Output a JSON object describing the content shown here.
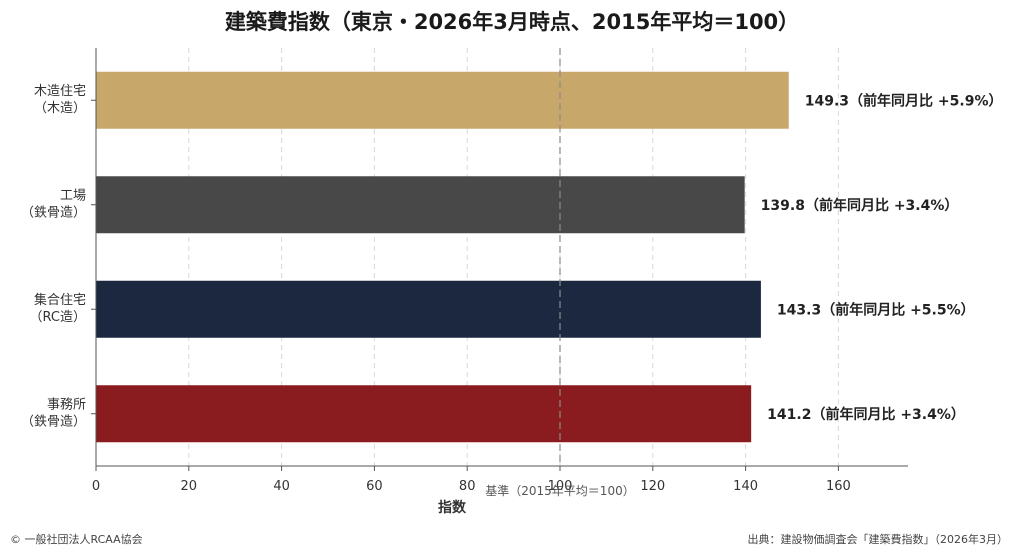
{
  "chart_data": {
    "type": "bar",
    "orientation": "horizontal",
    "title": "建築費指数（東京・2026年3月時点、2015年平均＝100）",
    "xlabel": "指数",
    "ylabel": "",
    "xlim": [
      0,
      175
    ],
    "xticks": [
      0,
      20,
      40,
      60,
      80,
      100,
      120,
      140,
      160
    ],
    "xtick_labels": [
      "0",
      "20",
      "40",
      "60",
      "80",
      "100",
      "120",
      "140",
      "160"
    ],
    "grid": "vertical dashed",
    "categories": [
      [
        "木造住宅",
        "（木造）"
      ],
      [
        "工場",
        "（鉄骨造）"
      ],
      [
        "集合住宅",
        "（RC造）"
      ],
      [
        "事務所",
        "（鉄骨造）"
      ]
    ],
    "values": [
      149.3,
      139.8,
      143.3,
      141.2
    ],
    "value_labels": [
      "149.3（前年同月比 +5.9%）",
      "139.8（前年同月比 +3.4%）",
      "143.3（前年同月比 +5.5%）",
      "141.2（前年同月比 +3.4%）"
    ],
    "colors": [
      "#c8a76a",
      "#484848",
      "#1b2840",
      "#8a1b1e"
    ],
    "reference_line": {
      "value": 100,
      "label": "基準（2015年平均＝100）"
    }
  },
  "footer": {
    "left": "© 一般社団法人RCAA協会",
    "right": "出典：建設物価調査会「建築費指数」（2026年3月）"
  }
}
